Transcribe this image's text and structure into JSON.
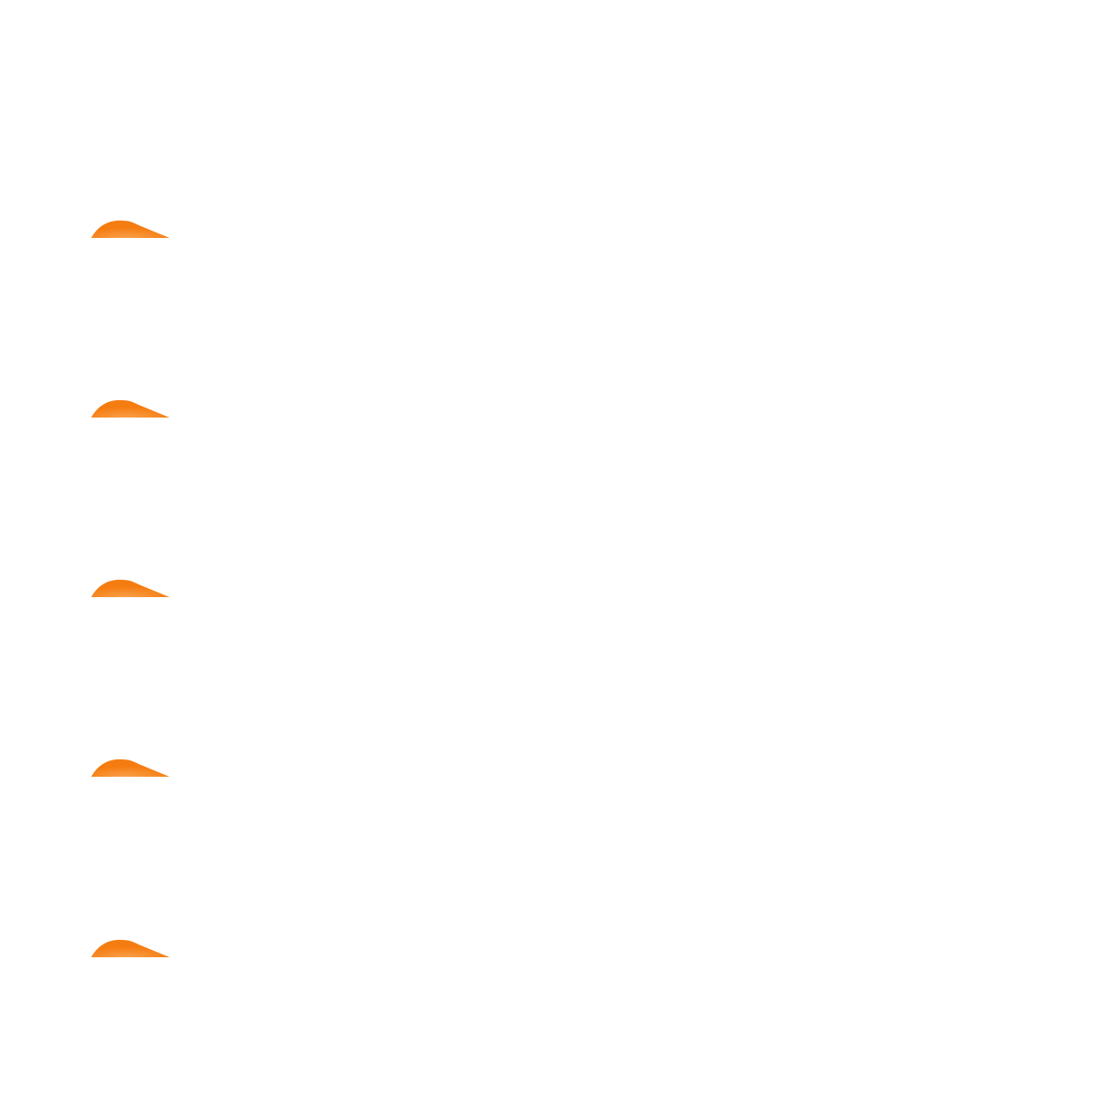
{
  "shapes": {
    "icon": "orange-wedge-icon",
    "color": "#f57c10",
    "highlight": "#f9a04a",
    "count": 5
  }
}
